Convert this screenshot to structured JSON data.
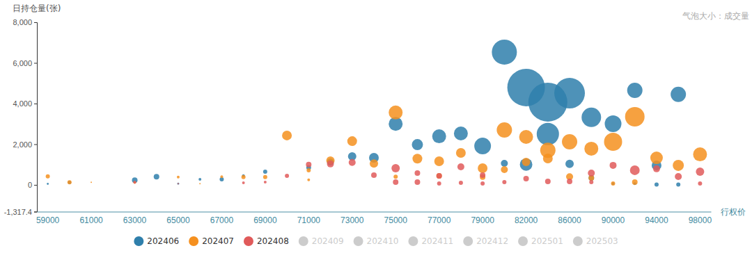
{
  "chart_data": {
    "type": "scatter",
    "y_label": "日持仓量(张)",
    "x_label": "行权价",
    "annotation": "气泡大小：成交量",
    "categories": [
      "59000",
      null,
      "61000",
      null,
      "63000",
      null,
      "65000",
      null,
      "67000",
      null,
      "69000",
      null,
      "71000",
      null,
      "73000",
      null,
      "75000",
      null,
      "77000",
      null,
      "79000",
      null,
      "82000",
      null,
      "86000",
      null,
      "90000",
      null,
      "94000",
      null,
      "98000"
    ],
    "strikes": [
      59000,
      60000,
      61000,
      62000,
      63000,
      64000,
      65000,
      66000,
      67000,
      68000,
      69000,
      70000,
      71000,
      72000,
      73000,
      74000,
      75000,
      76000,
      77000,
      78000,
      79000,
      80000,
      82000,
      84000,
      86000,
      88000,
      90000,
      92000,
      94000,
      96000,
      98000
    ],
    "ylim": [
      -1317.4,
      8000
    ],
    "yticks": [
      {
        "value": -1317.4,
        "label": "-1,317.4"
      },
      0,
      {
        "value": 2000,
        "label": "2,000"
      },
      {
        "value": 4000,
        "label": "4,000"
      },
      {
        "value": 6000,
        "label": "6,000"
      },
      {
        "value": 8000,
        "label": "8,000"
      }
    ],
    "grid": false,
    "legend": "bottom",
    "series": [
      {
        "name": "202406",
        "color": "#2f7fab",
        "x": [
          59000,
          60000,
          63000,
          64000,
          65000,
          66000,
          67000,
          68000,
          69000,
          71000,
          72000,
          73000,
          74000,
          75000,
          76000,
          77000,
          78000,
          79000,
          80000,
          80000,
          82000,
          82000,
          84000,
          84000,
          86000,
          86000,
          88000,
          88000,
          90000,
          90000,
          92000,
          92000,
          94000,
          94000,
          96000,
          96000
        ],
        "values": [
          50,
          120,
          230,
          400,
          60,
          270,
          270,
          450,
          650,
          850,
          1130,
          1400,
          1330,
          3000,
          1980,
          2390,
          2530,
          1910,
          6530,
          1060,
          4790,
          1000,
          4070,
          2500,
          4510,
          1030,
          3320,
          340,
          3010,
          60,
          4650,
          60,
          960,
          20,
          4450,
          20
        ],
        "sizes": [
          20,
          60,
          160,
          160,
          20,
          40,
          90,
          40,
          90,
          120,
          250,
          360,
          490,
          1000,
          640,
          1000,
          1000,
          1440,
          3240,
          250,
          7290,
          810,
          7840,
          2560,
          4840,
          360,
          1960,
          160,
          1440,
          40,
          1210,
          40,
          490,
          90,
          1210,
          90
        ]
      },
      {
        "name": "202407",
        "color": "#f5901f",
        "x": [
          59000,
          60000,
          61000,
          63000,
          65000,
          66000,
          67000,
          68000,
          69000,
          70000,
          71000,
          71000,
          72000,
          73000,
          74000,
          75000,
          75000,
          76000,
          77000,
          77000,
          78000,
          79000,
          79000,
          80000,
          80000,
          82000,
          82000,
          84000,
          84000,
          86000,
          86000,
          88000,
          88000,
          90000,
          90000,
          92000,
          92000,
          94000,
          96000,
          98000
        ],
        "values": [
          420,
          130,
          130,
          120,
          380,
          60,
          400,
          380,
          380,
          2430,
          720,
          250,
          1200,
          2150,
          1050,
          3560,
          400,
          1290,
          1160,
          440,
          1570,
          820,
          380,
          2700,
          750,
          2360,
          1130,
          1700,
          1300,
          2120,
          400,
          1780,
          340,
          2120,
          70,
          3350,
          140,
          1330,
          960,
          1500
        ],
        "sizes": [
          90,
          90,
          10,
          40,
          40,
          10,
          40,
          90,
          90,
          490,
          90,
          40,
          360,
          490,
          360,
          1000,
          90,
          490,
          490,
          160,
          490,
          490,
          160,
          1210,
          250,
          1000,
          360,
          1210,
          490,
          1210,
          250,
          1000,
          160,
          1690,
          90,
          1960,
          160,
          810,
          640,
          1000
        ]
      },
      {
        "name": "202408",
        "color": "#e05a5a",
        "x": [
          63000,
          65000,
          68000,
          69000,
          70000,
          71000,
          72000,
          73000,
          74000,
          75000,
          75000,
          76000,
          76000,
          77000,
          77000,
          78000,
          78000,
          79000,
          79000,
          80000,
          82000,
          84000,
          86000,
          88000,
          88000,
          90000,
          92000,
          94000,
          96000,
          98000,
          98000
        ],
        "values": [
          130,
          60,
          100,
          140,
          440,
          1000,
          1030,
          1100,
          480,
          820,
          140,
          580,
          140,
          440,
          70,
          890,
          100,
          480,
          70,
          140,
          310,
          170,
          170,
          580,
          140,
          960,
          720,
          790,
          410,
          650,
          70
        ],
        "sizes": [
          40,
          10,
          40,
          40,
          90,
          160,
          250,
          250,
          160,
          360,
          160,
          160,
          160,
          160,
          90,
          250,
          90,
          160,
          90,
          90,
          160,
          160,
          160,
          250,
          90,
          250,
          490,
          250,
          250,
          360,
          90
        ]
      },
      {
        "name": "202409",
        "color": "#cccccc",
        "x": [],
        "values": [],
        "sizes": []
      },
      {
        "name": "202410",
        "color": "#cccccc",
        "x": [],
        "values": [],
        "sizes": []
      },
      {
        "name": "202411",
        "color": "#cccccc",
        "x": [],
        "values": [],
        "sizes": []
      },
      {
        "name": "202412",
        "color": "#cccccc",
        "x": [],
        "values": [],
        "sizes": []
      },
      {
        "name": "202501",
        "color": "#cccccc",
        "x": [],
        "values": [],
        "sizes": []
      },
      {
        "name": "202503",
        "color": "#cccccc",
        "x": [],
        "values": [],
        "sizes": []
      }
    ]
  }
}
